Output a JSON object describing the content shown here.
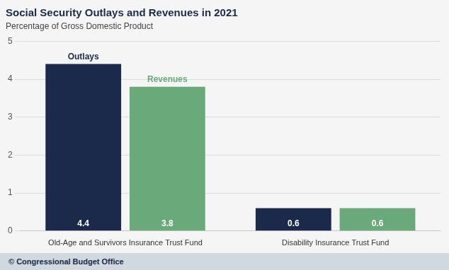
{
  "chart_data": {
    "type": "bar",
    "title": "Social Security Outlays and Revenues in 2021",
    "subtitle": "Percentage of Gross Domestic Product",
    "footer": "© Congressional Budget Office",
    "categories": [
      "Old-Age and Survivors Insurance Trust Fund",
      "Disability Insurance Trust Fund"
    ],
    "series": [
      {
        "name": "Outlays",
        "color": "#1b2a4a",
        "values": [
          4.4,
          0.6
        ]
      },
      {
        "name": "Revenues",
        "color": "#6aaa7a",
        "values": [
          3.8,
          0.6
        ]
      }
    ],
    "ylim": [
      0,
      5
    ],
    "yticks": [
      0,
      1,
      2,
      3,
      4,
      5
    ],
    "grid": true,
    "data_labels": true
  }
}
